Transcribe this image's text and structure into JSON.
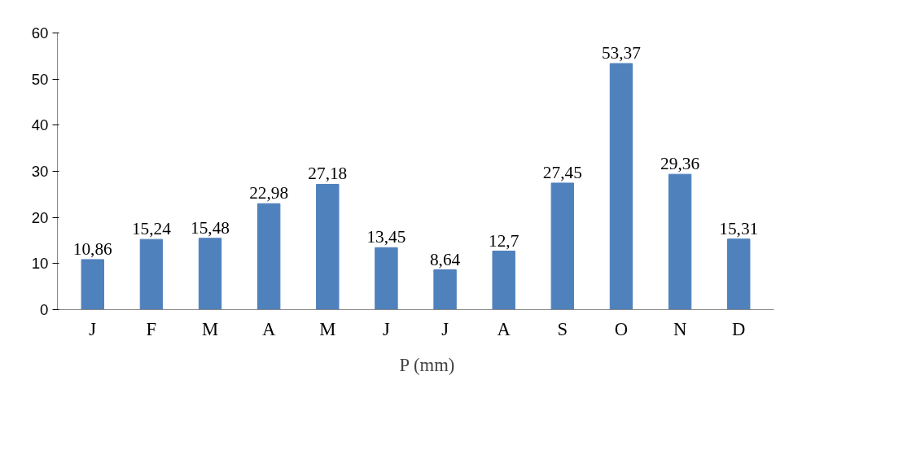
{
  "chart_data": {
    "type": "bar",
    "categories": [
      "J",
      "F",
      "M",
      "A",
      "M",
      "J",
      "J",
      "A",
      "S",
      "O",
      "N",
      "D"
    ],
    "series": [
      {
        "name": "P (mm)",
        "color": "#4f81bd",
        "values": [
          10.86,
          15.24,
          15.48,
          22.98,
          27.18,
          13.45,
          8.64,
          12.7,
          27.45,
          53.37,
          29.36,
          15.31
        ],
        "value_labels": [
          "10,86",
          "15,24",
          "15,48",
          "22,98",
          "27,18",
          "13,45",
          "8,64",
          "12,7",
          "27,45",
          "53,37",
          "29,36",
          "15,31"
        ]
      }
    ],
    "ylim": [
      0,
      60
    ],
    "yticks": [
      0,
      10,
      20,
      30,
      40,
      50,
      60
    ],
    "grid": false,
    "legend": "bottom"
  }
}
